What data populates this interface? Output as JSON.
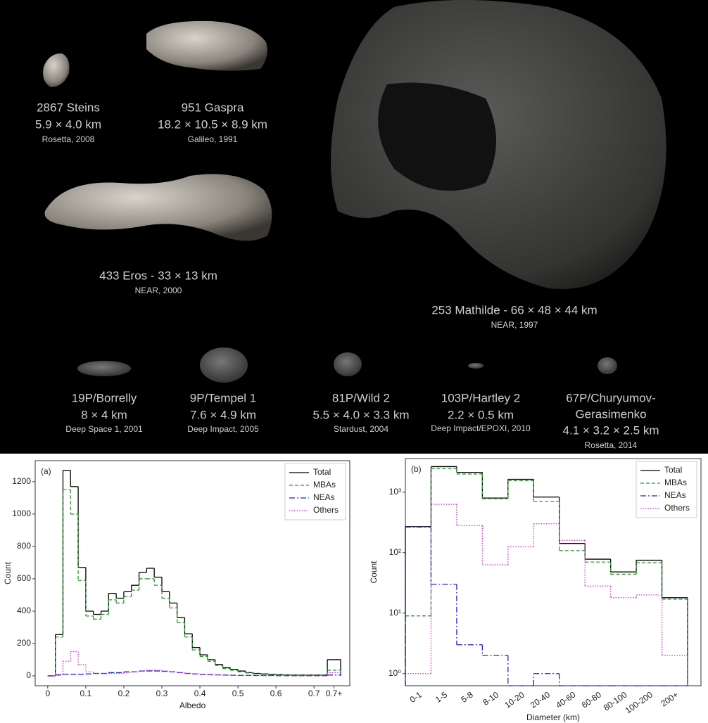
{
  "asteroids": [
    {
      "lines": [
        "2867 Steins",
        "5.9 × 4.0 km",
        "Rosetta, 2008"
      ]
    },
    {
      "lines": [
        "951 Gaspra",
        "18.2 × 10.5 × 8.9 km",
        "Galileo, 1991"
      ]
    },
    {
      "lines": [
        "433 Eros - 33 × 13 km",
        "NEAR,  2000"
      ]
    },
    {
      "lines": [
        "253 Mathilde - 66 × 48 × 44 km",
        "NEAR, 1997"
      ]
    },
    {
      "lines": [
        "19P/Borrelly",
        "8 × 4 km",
        "Deep Space 1, 2001"
      ]
    },
    {
      "lines": [
        "9P/Tempel 1",
        "7.6 × 4.9 km",
        "Deep Impact, 2005"
      ]
    },
    {
      "lines": [
        "81P/Wild 2",
        "5.5 × 4.0 × 3.3 km",
        "Stardust, 2004"
      ]
    },
    {
      "lines": [
        "103P/Hartley 2",
        "2.2 × 0.5 km",
        "Deep Impact/EPOXI, 2010"
      ]
    },
    {
      "lines": [
        "67P/Churyumov-",
        "Gerasimenko",
        "4.1 × 3.2 × 2.5 km",
        "Rosetta, 2014"
      ]
    }
  ],
  "chart_data": [
    {
      "type": "histogram",
      "panel_label": "(a)",
      "x_label": "Albedo",
      "y_label": "Count",
      "bins": [
        0,
        0.02,
        0.04,
        0.06,
        0.08,
        0.1,
        0.12,
        0.14,
        0.16,
        0.18,
        0.2,
        0.22,
        0.24,
        0.26,
        0.28,
        0.3,
        0.32,
        0.34,
        0.36,
        0.38,
        0.4,
        0.42,
        0.44,
        0.46,
        0.48,
        0.5,
        0.52,
        0.54,
        0.56,
        0.58,
        0.6,
        0.62,
        0.64,
        0.66,
        0.68,
        0.7,
        0.72,
        0.735,
        0.77
      ],
      "series": [
        {
          "name": "Total",
          "color": "#000000",
          "linestyle": "solid",
          "values": [
            0,
            255,
            1270,
            1170,
            670,
            400,
            380,
            400,
            510,
            480,
            520,
            560,
            640,
            665,
            610,
            520,
            450,
            360,
            260,
            175,
            130,
            100,
            70,
            50,
            40,
            30,
            20,
            15,
            12,
            10,
            8,
            6,
            5,
            5,
            5,
            5,
            5,
            100
          ]
        },
        {
          "name": "MBAs",
          "color": "#2e9a2e",
          "linestyle": "dashed",
          "values": [
            0,
            240,
            1150,
            1000,
            590,
            370,
            350,
            380,
            470,
            450,
            490,
            530,
            600,
            600,
            560,
            480,
            420,
            330,
            240,
            160,
            120,
            90,
            65,
            45,
            35,
            25,
            18,
            12,
            10,
            8,
            6,
            5,
            4,
            4,
            4,
            4,
            4,
            35
          ]
        },
        {
          "name": "NEAs",
          "color": "#2222cc",
          "linestyle": "dashdot",
          "values": [
            0,
            5,
            10,
            10,
            10,
            12,
            15,
            15,
            20,
            20,
            25,
            25,
            30,
            30,
            30,
            28,
            25,
            20,
            15,
            12,
            10,
            8,
            6,
            5,
            4,
            3,
            3,
            2,
            2,
            2,
            1,
            1,
            1,
            1,
            1,
            1,
            1,
            5
          ]
        },
        {
          "name": "Others",
          "color": "#cc33cc",
          "linestyle": "dotted",
          "values": [
            0,
            10,
            90,
            150,
            70,
            25,
            15,
            15,
            15,
            15,
            20,
            25,
            30,
            35,
            35,
            30,
            25,
            20,
            15,
            12,
            8,
            6,
            5,
            4,
            3,
            3,
            2,
            2,
            2,
            2,
            2,
            2,
            1,
            1,
            1,
            1,
            1,
            20
          ]
        }
      ],
      "xlim": [
        -0.033,
        0.794
      ],
      "xticks": [
        0,
        0.1,
        0.2,
        0.3,
        0.4,
        0.5,
        0.6,
        0.7,
        {
          "value": 0.7525,
          "label": "0.7+"
        }
      ],
      "ylim": [
        -61,
        1330
      ],
      "yticks": [
        0,
        200,
        400,
        600,
        800,
        1000,
        1200
      ],
      "legend": "upper right"
    },
    {
      "type": "step",
      "panel_label": "(b)",
      "x_label": "Diameter (km)",
      "y_label": "Count",
      "y_scale": "log",
      "categories": [
        "0-1",
        "1-5",
        "5-8",
        "8-10",
        "10-20",
        "20-40",
        "40-60",
        "60-80",
        "80-100",
        "100-200",
        "200+"
      ],
      "series": [
        {
          "name": "Total",
          "color": "#000000",
          "linestyle": "solid",
          "values": [
            270,
            2650,
            2130,
            800,
            1630,
            830,
            142,
            78,
            48,
            75,
            18
          ]
        },
        {
          "name": "MBAs",
          "color": "#2e9a2e",
          "linestyle": "dashed",
          "values": [
            9,
            2450,
            2000,
            780,
            1550,
            700,
            108,
            70,
            44,
            68,
            17
          ]
        },
        {
          "name": "NEAs",
          "color": "#2222cc",
          "linestyle": "dashdot",
          "values": [
            265,
            30,
            3,
            2,
            0,
            1,
            0,
            0,
            0,
            0,
            0
          ]
        },
        {
          "name": "Others",
          "color": "#cc33cc",
          "linestyle": "dotted",
          "values": [
            1,
            630,
            280,
            63,
            125,
            300,
            160,
            28,
            18,
            20,
            2
          ]
        }
      ],
      "ylim": [
        0.63,
        3600
      ],
      "yticks": [
        {
          "value": 1,
          "label": "10⁰"
        },
        {
          "value": 10,
          "label": "10¹"
        },
        {
          "value": 100,
          "label": "10²"
        },
        {
          "value": 1000,
          "label": "10³"
        }
      ],
      "legend": "upper right"
    }
  ]
}
